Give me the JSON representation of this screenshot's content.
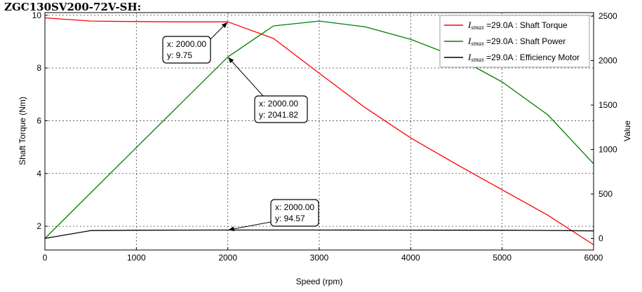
{
  "title": "ZGC130SV200-72V-SH:",
  "chart_data": {
    "type": "line",
    "xlabel": "Speed  (rpm)",
    "ylabel_left": "Shaft Torque  (Nm)",
    "ylabel_right": "Value",
    "xlim": [
      0,
      6000
    ],
    "ylim_left": [
      1.1,
      10.1
    ],
    "ylim_right": [
      -130,
      2540
    ],
    "x_ticks": [
      0,
      1000,
      2000,
      3000,
      4000,
      5000,
      6000
    ],
    "y_ticks_left": [
      2,
      4,
      6,
      8,
      10
    ],
    "y_ticks_right": [
      0,
      500,
      1000,
      1500,
      2000,
      2500
    ],
    "grid": true,
    "legend_position": "top-right",
    "series": [
      {
        "name_prefix": "I",
        "name_sub": "smax",
        "name_suffix": " =29.0A : Shaft Torque",
        "axis": "left",
        "color": "#ff0000",
        "x": [
          0,
          500,
          1000,
          1500,
          2000,
          2500,
          3000,
          3500,
          4000,
          4500,
          5000,
          5500,
          6000
        ],
        "y": [
          9.9,
          9.78,
          9.76,
          9.75,
          9.75,
          9.12,
          7.8,
          6.5,
          5.35,
          4.35,
          3.38,
          2.42,
          1.3
        ]
      },
      {
        "name_prefix": "I",
        "name_sub": "smax",
        "name_suffix": " =29.0A : Shaft Power",
        "axis": "right",
        "color": "#008000",
        "x": [
          0,
          500,
          1000,
          1500,
          2000,
          2500,
          3000,
          3500,
          4000,
          4500,
          5000,
          5500,
          6000
        ],
        "y": [
          0,
          512,
          1022,
          1531,
          2041.82,
          2390,
          2445,
          2380,
          2240,
          2040,
          1760,
          1390,
          840
        ]
      },
      {
        "name_prefix": "I",
        "name_sub": "smax",
        "name_suffix": " =29.0A : Efficiency Motor",
        "axis": "right",
        "color": "#000000",
        "x": [
          0,
          500,
          1000,
          1500,
          2000,
          2500,
          3000,
          3500,
          4000,
          4500,
          5000,
          5500,
          6000
        ],
        "y": [
          0,
          88,
          92,
          94,
          94.57,
          94.5,
          94.3,
          94,
          93.5,
          93,
          92,
          90,
          85
        ]
      }
    ],
    "annotations": [
      {
        "x_label": "x: 2000.00",
        "y_label": "y: 9.75",
        "x": 2000,
        "y": 9.75,
        "axis": "left"
      },
      {
        "x_label": "x: 2000.00",
        "y_label": "y: 2041.82",
        "x": 2000,
        "y": 2041.82,
        "axis": "right"
      },
      {
        "x_label": "x: 2000.00",
        "y_label": "y: 94.57",
        "x": 2000,
        "y": 94.57,
        "axis": "right"
      }
    ]
  }
}
